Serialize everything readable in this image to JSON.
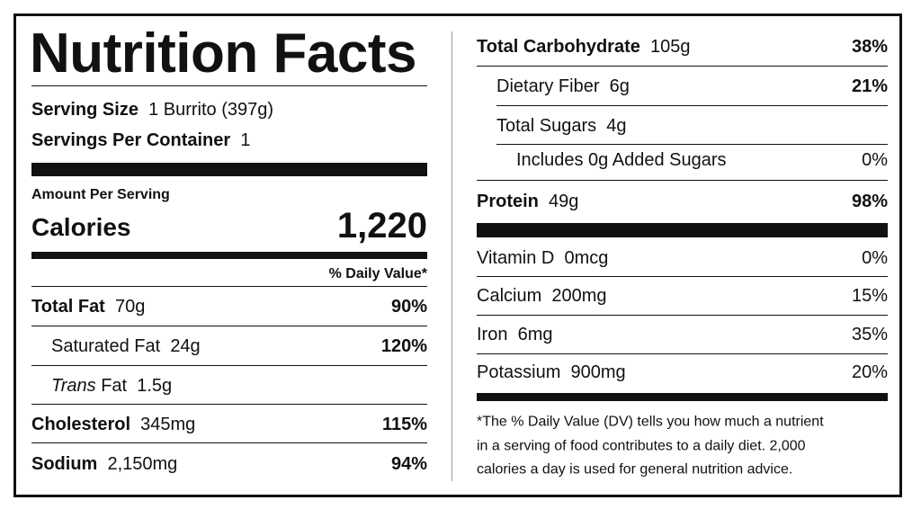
{
  "title": "Nutrition Facts",
  "serving_size": {
    "label": "Serving Size",
    "value": "1 Burrito (397g)"
  },
  "servings_per_container": {
    "label": "Servings Per Container",
    "value": "1"
  },
  "amount_per_serving": "Amount Per Serving",
  "calories": {
    "label": "Calories",
    "value": "1,220"
  },
  "daily_value_header": "% Daily Value*",
  "left_rows": [
    {
      "name": "Total Fat",
      "amount": "70g",
      "percent": "90%"
    },
    {
      "name": "Saturated Fat",
      "amount": "24g",
      "percent": "120%"
    },
    {
      "name_italic": "Trans",
      "name": "Fat",
      "amount": "1.5g"
    },
    {
      "name": "Cholesterol",
      "amount": "345mg",
      "percent": "115%"
    },
    {
      "name": "Sodium",
      "amount": "2,150mg",
      "percent": "94%"
    }
  ],
  "right_rows": [
    {
      "name": "Total Carbohydrate",
      "amount": "105g",
      "percent": "38%"
    },
    {
      "name": "Dietary Fiber",
      "amount": "6g",
      "percent": "21%"
    },
    {
      "name": "Total Sugars",
      "amount": "4g"
    },
    {
      "name": "Includes 0g Added Sugars",
      "percent": "0%"
    },
    {
      "name": "Protein",
      "amount": "49g",
      "percent": "98%"
    },
    {
      "name": "Vitamin D",
      "amount": "0mcg",
      "percent": "0%"
    },
    {
      "name": "Calcium",
      "amount": "200mg",
      "percent": "15%"
    },
    {
      "name": "Iron",
      "amount": "6mg",
      "percent": "35%"
    },
    {
      "name": "Potassium",
      "amount": "900mg",
      "percent": "20%"
    }
  ],
  "footnote": [
    "*The % Daily Value (DV) tells you how much a nutrient",
    "in a serving of food contributes to a daily diet. 2,000",
    "calories a day is used for general nutrition advice."
  ]
}
